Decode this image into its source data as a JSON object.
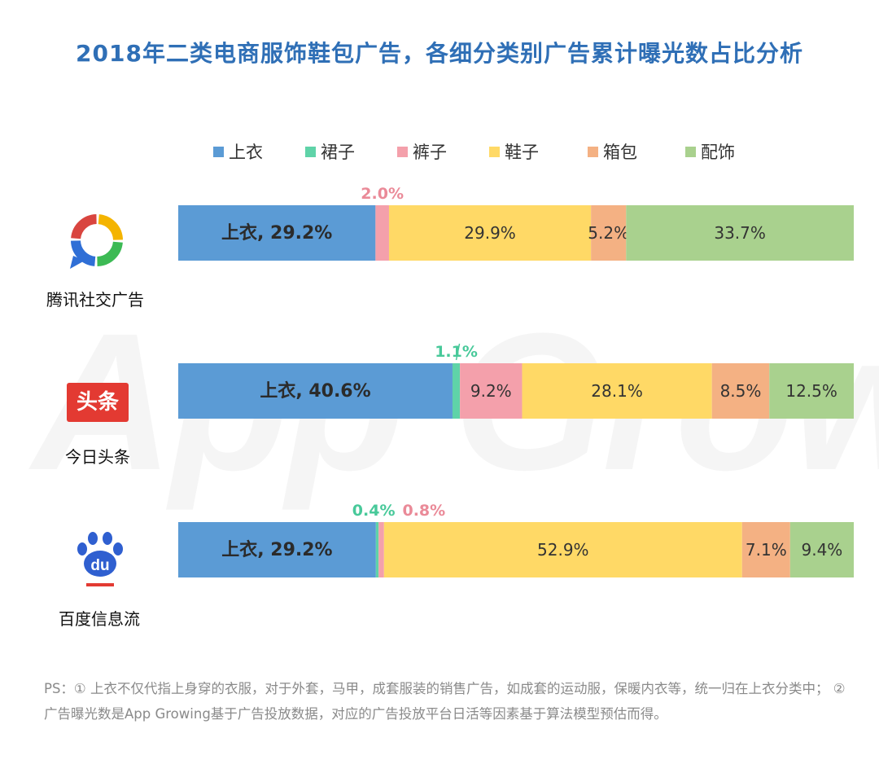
{
  "title": "2018年二类电商服饰鞋包广告，各细分类别广告累计曝光数占比分析",
  "watermark": "App Growing",
  "platforms": [
    {
      "name": "腾讯社交广告",
      "logo_icon": "tencent-social-ads-icon"
    },
    {
      "name": "今日头条",
      "logo_icon": "toutiao-icon",
      "logo_text": "头条"
    },
    {
      "name": "百度信息流",
      "logo_icon": "baidu-paw-icon",
      "logo_text": "du"
    }
  ],
  "colors": {
    "上衣": "#5b9bd5",
    "裙子": "#5fd3a8",
    "裤子": "#f4a0ab",
    "鞋子": "#ffd966",
    "箱包": "#f4b183",
    "配饰": "#a9d18e",
    "above_green": "#48c99a",
    "above_pink": "#ea8a98"
  },
  "chart_data": {
    "type": "bar",
    "orientation": "horizontal-stacked-100",
    "legend": [
      "上衣",
      "裙子",
      "裤子",
      "鞋子",
      "箱包",
      "配饰"
    ],
    "legend_position": "top",
    "categories": [
      "腾讯社交广告",
      "今日头条",
      "百度信息流"
    ],
    "series": [
      {
        "name": "上衣",
        "values": [
          29.2,
          40.6,
          29.2
        ]
      },
      {
        "name": "裙子",
        "values": [
          0,
          1.1,
          0.4
        ]
      },
      {
        "name": "裤子",
        "values": [
          2.0,
          9.2,
          0.8
        ]
      },
      {
        "name": "鞋子",
        "values": [
          29.9,
          28.1,
          52.9
        ]
      },
      {
        "name": "箱包",
        "values": [
          5.2,
          8.5,
          7.1
        ]
      },
      {
        "name": "配饰",
        "values": [
          33.7,
          12.5,
          9.4
        ]
      }
    ],
    "labels": [
      [
        "上衣, 29.2%",
        "",
        "2.0%",
        "29.9%",
        "5.2%",
        "33.7%"
      ],
      [
        "上衣, 40.6%",
        "1.1%",
        "9.2%",
        "28.1%",
        "8.5%",
        "12.5%"
      ],
      [
        "上衣, 29.2%",
        "0.4%",
        "0.8%",
        "52.9%",
        "7.1%",
        "9.4%"
      ]
    ],
    "xlim": [
      0,
      100
    ]
  },
  "footnote": "PS：① 上衣不仅代指上身穿的衣服，对于外套，马甲，成套服装的销售广告，如成套的运动服，保暖内衣等，统一归在上衣分类中； ② 广告曝光数是App Growing基于广告投放数据，对应的广告投放平台日活等因素基于算法模型预估而得。"
}
